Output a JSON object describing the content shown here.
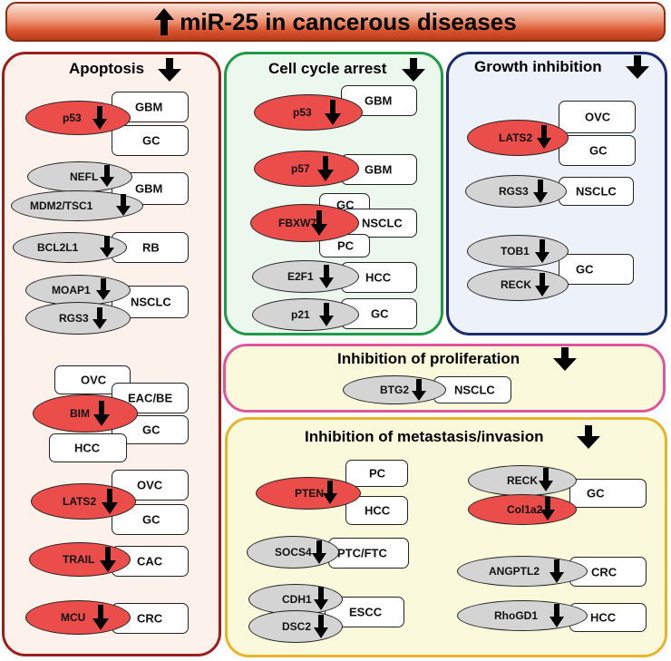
{
  "title": "miR-25 in cancerous diseases",
  "panels": {
    "apoptosis": {
      "title": "Apoptosis",
      "border": "#9e1d1d",
      "bg": "#fdf1ec"
    },
    "cell_cycle": {
      "title": "Cell cycle arrest",
      "border": "#1f9a46",
      "bg": "#ecf7ee"
    },
    "growth": {
      "title": "Growth inhibition",
      "border": "#1c2d6e",
      "bg": "#edf2fa"
    },
    "proliferation": {
      "title": "Inhibition of proliferation",
      "border": "#e0569b",
      "bg": "#fbf9db"
    },
    "metastasis": {
      "title": "Inhibition of metastasis/invasion",
      "border": "#e6b52a",
      "bg": "#fbf9db"
    }
  },
  "colors": {
    "upregulated_target": "#ea4d4a",
    "other_target": "#d4d4d4",
    "arrow": "#000000"
  },
  "genes": {
    "ap_p53": "p53",
    "ap_nefl": "NEFL",
    "ap_mdm2": "MDM2/TSC1",
    "ap_bcl2l1": "BCL2L1",
    "ap_moap1": "MOAP1",
    "ap_rgs3": "RGS3",
    "ap_bim": "BIM",
    "ap_lats2": "LATS2",
    "ap_trail": "TRAIL",
    "ap_mcu": "MCU",
    "cc_p53": "p53",
    "cc_p57": "p57",
    "cc_fbxw7": "FBXW7",
    "cc_e2f1": "E2F1",
    "cc_p21": "p21",
    "gi_lats2": "LATS2",
    "gi_rgs3": "RGS3",
    "gi_tob1": "TOB1",
    "gi_reck": "RECK",
    "pr_btg2": "BTG2",
    "me_pten": "PTEN",
    "me_socs4": "SOCS4",
    "me_cdh1": "CDH1",
    "me_dsc2": "DSC2",
    "me_reck": "RECK",
    "me_col1a2": "Col1a2",
    "me_angptl2": "ANGPTL2",
    "me_rhogd1": "RhoGD1"
  },
  "cancers": {
    "ap_gbm1": "GBM",
    "ap_gc1": "GC",
    "ap_gbm2": "GBM",
    "ap_rb": "RB",
    "ap_nsclc": "NSCLC",
    "ap_ovc1": "OVC",
    "ap_eacbe": "EAC/BE",
    "ap_gc2": "GC",
    "ap_hcc": "HCC",
    "ap_ovc2": "OVC",
    "ap_gc3": "GC",
    "ap_cac": "CAC",
    "ap_crc": "CRC",
    "cc_gbm1": "GBM",
    "cc_gbm2": "GBM",
    "cc_gc1": "GC",
    "cc_nsclc": "NSCLC",
    "cc_pc": "PC",
    "cc_hcc": "HCC",
    "cc_gc2": "GC",
    "gi_ovc": "OVC",
    "gi_gc1": "GC",
    "gi_nsclc": "NSCLC",
    "gi_gc2": "GC",
    "pr_nsclc": "NSCLC",
    "me_pc": "PC",
    "me_hcc1": "HCC",
    "me_ptcftc": "PTC/FTC",
    "me_escc": "ESCC",
    "me_gc": "GC",
    "me_crc": "CRC",
    "me_hcc2": "HCC"
  }
}
